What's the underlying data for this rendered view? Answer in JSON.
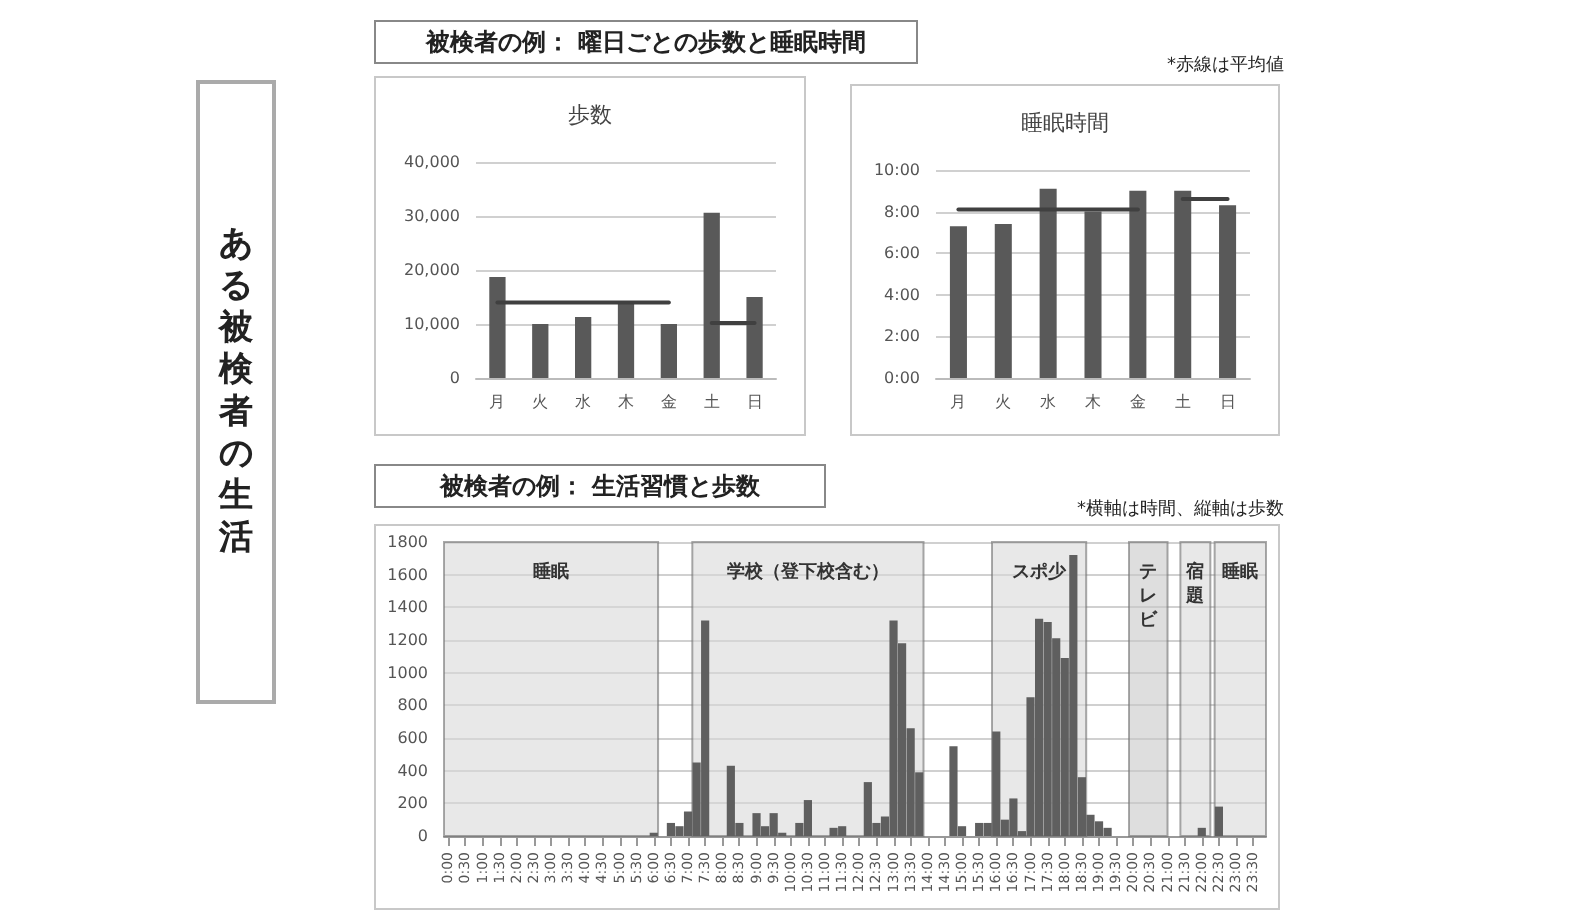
{
  "chart_data": [
    {
      "type": "bar",
      "title": "歩数",
      "categories": [
        "月",
        "火",
        "水",
        "木",
        "金",
        "土",
        "日"
      ],
      "series": [
        {
          "color": "#595959",
          "values": [
            18700,
            10000,
            11300,
            13800,
            10000,
            30600,
            15000
          ]
        },
        {
          "type": "line",
          "color": "#404040",
          "values": [
            14000,
            14000,
            14000,
            14000,
            14000,
            null,
            null
          ]
        },
        {
          "type": "line",
          "color": "#404040",
          "values": [
            null,
            null,
            null,
            null,
            null,
            10200,
            10200
          ]
        }
      ],
      "ylim": [
        0,
        40000
      ],
      "yticks": [
        0,
        {
          "value": 10000,
          "label": "10,000"
        },
        {
          "value": 20000,
          "label": "20,000"
        },
        {
          "value": 30000,
          "label": "30,000"
        },
        {
          "value": 40000,
          "label": "40,000"
        }
      ],
      "grid": "y",
      "annotations": [
        "ある被検者の生活",
        "被検者の例： 曜日ごとの歩数と睡眠時間"
      ]
    },
    {
      "type": "bar",
      "title": "睡眠時間",
      "categories": [
        "月",
        "火",
        "水",
        "木",
        "金",
        "土",
        "日"
      ],
      "series": [
        {
          "color": "#595959",
          "values": [
            7.3,
            7.4,
            9.1,
            8.0,
            9.0,
            9.0,
            8.3
          ]
        },
        {
          "type": "line",
          "color": "#404040",
          "values": [
            8.1,
            8.1,
            8.1,
            8.1,
            8.1,
            null,
            null
          ]
        },
        {
          "type": "line",
          "color": "#404040",
          "values": [
            null,
            null,
            null,
            null,
            null,
            8.6,
            8.6
          ]
        }
      ],
      "ylim": [
        0,
        10
      ],
      "yticks": [
        {
          "value": 0,
          "label": "0:00"
        },
        {
          "value": 2,
          "label": "2:00"
        },
        {
          "value": 4,
          "label": "4:00"
        },
        {
          "value": 6,
          "label": "6:00"
        },
        {
          "value": 8,
          "label": "8:00"
        },
        {
          "value": 10,
          "label": "10:00"
        }
      ],
      "grid": "y",
      "annotations": [
        "*赤線は平均値"
      ]
    },
    {
      "type": "bar",
      "title": "被検者の例： 生活習慣と歩数",
      "x": [
        0,
        0.25,
        0.5,
        0.75,
        1,
        1.25,
        1.5,
        1.75,
        2,
        2.25,
        2.5,
        2.75,
        3,
        3.25,
        3.5,
        3.75,
        4,
        4.25,
        4.5,
        4.75,
        5,
        5.25,
        5.5,
        5.75,
        6,
        6.25,
        6.5,
        6.75,
        7,
        7.25,
        7.5,
        7.75,
        8,
        8.25,
        8.5,
        8.75,
        9,
        9.25,
        9.5,
        9.75,
        10,
        10.25,
        10.5,
        10.75,
        11,
        11.25,
        11.5,
        11.75,
        12,
        12.25,
        12.5,
        12.75,
        13,
        13.25,
        13.5,
        13.75,
        14,
        14.25,
        14.5,
        14.75,
        15,
        15.25,
        15.5,
        15.75,
        16,
        16.25,
        16.5,
        16.75,
        17,
        17.25,
        17.5,
        17.75,
        18,
        18.25,
        18.5,
        18.75,
        19,
        19.25,
        19.5,
        19.75,
        20,
        20.25,
        20.5,
        20.75,
        21,
        21.25,
        21.5,
        21.75,
        22,
        22.25,
        22.5,
        22.75,
        23,
        23.25,
        23.5,
        23.75
      ],
      "series": [
        {
          "color": "#5f5f5f",
          "values": [
            0,
            0,
            0,
            0,
            0,
            0,
            0,
            0,
            0,
            0,
            0,
            0,
            0,
            0,
            0,
            0,
            0,
            0,
            0,
            0,
            0,
            0,
            0,
            0,
            20,
            0,
            80,
            60,
            150,
            450,
            1320,
            0,
            0,
            430,
            80,
            0,
            140,
            60,
            140,
            20,
            0,
            80,
            220,
            0,
            0,
            50,
            60,
            0,
            0,
            330,
            80,
            120,
            1320,
            1180,
            660,
            390,
            0,
            0,
            0,
            550,
            60,
            0,
            80,
            80,
            640,
            100,
            230,
            30,
            850,
            1330,
            1310,
            1210,
            1090,
            1720,
            360,
            130,
            90,
            50,
            0,
            0,
            0,
            0,
            0,
            0,
            0,
            0,
            null,
            0,
            50,
            0,
            180,
            0,
            0,
            0,
            0,
            0
          ]
        }
      ],
      "xlim": [
        -0.125,
        23.875
      ],
      "xticks": [
        {
          "value": 0,
          "label": "0:00"
        },
        {
          "value": 0.5,
          "label": "0:30"
        },
        {
          "value": 1,
          "label": "1:00"
        },
        {
          "value": 1.5,
          "label": "1:30"
        },
        {
          "value": 2,
          "label": "2:00"
        },
        {
          "value": 2.5,
          "label": "2:30"
        },
        {
          "value": 3,
          "label": "3:00"
        },
        {
          "value": 3.5,
          "label": "3:30"
        },
        {
          "value": 4,
          "label": "4:00"
        },
        {
          "value": 4.5,
          "label": "4:30"
        },
        {
          "value": 5,
          "label": "5:00"
        },
        {
          "value": 5.5,
          "label": "5:30"
        },
        {
          "value": 6,
          "label": "6:00"
        },
        {
          "value": 6.5,
          "label": "6:30"
        },
        {
          "value": 7,
          "label": "7:00"
        },
        {
          "value": 7.5,
          "label": "7:30"
        },
        {
          "value": 8,
          "label": "8:00"
        },
        {
          "value": 8.5,
          "label": "8:30"
        },
        {
          "value": 9,
          "label": "9:00"
        },
        {
          "value": 9.5,
          "label": "9:30"
        },
        {
          "value": 10,
          "label": "10:00"
        },
        {
          "value": 10.5,
          "label": "10:30"
        },
        {
          "value": 11,
          "label": "11:00"
        },
        {
          "value": 11.5,
          "label": "11:30"
        },
        {
          "value": 12,
          "label": "12:00"
        },
        {
          "value": 12.5,
          "label": "12:30"
        },
        {
          "value": 13,
          "label": "13:00"
        },
        {
          "value": 13.5,
          "label": "13:30"
        },
        {
          "value": 14,
          "label": "14:00"
        },
        {
          "value": 14.5,
          "label": "14:30"
        },
        {
          "value": 15,
          "label": "15:00"
        },
        {
          "value": 15.5,
          "label": "15:30"
        },
        {
          "value": 16,
          "label": "16:00"
        },
        {
          "value": 16.5,
          "label": "16:30"
        },
        {
          "value": 17,
          "label": "17:00"
        },
        {
          "value": 17.5,
          "label": "17:30"
        },
        {
          "value": 18,
          "label": "18:00"
        },
        {
          "value": 18.5,
          "label": "18:30"
        },
        {
          "value": 19,
          "label": "19:00"
        },
        {
          "value": 19.5,
          "label": "19:30"
        },
        {
          "value": 20,
          "label": "20:00"
        },
        {
          "value": 20.5,
          "label": "20:30"
        },
        {
          "value": 21,
          "label": "21:00"
        },
        {
          "value": 21.5,
          "label": "21:30"
        },
        {
          "value": 22,
          "label": "22:00"
        },
        {
          "value": 22.5,
          "label": "22:30"
        },
        {
          "value": 23,
          "label": "23:00"
        },
        {
          "value": 23.5,
          "label": "23:30"
        }
      ],
      "ylim": [
        0,
        1800
      ],
      "yticks": [
        0,
        200,
        400,
        600,
        800,
        1000,
        1200,
        1400,
        1600,
        1800
      ],
      "bands": [
        {
          "axis": "x",
          "from": -0.125,
          "to": 6.125,
          "label": "睡眠",
          "color": "#d9d9d9"
        },
        {
          "axis": "x",
          "from": 7.125,
          "to": 13.875,
          "label": "学校（登下校含む）",
          "color": "#d9d9d9"
        },
        {
          "axis": "x",
          "from": 15.875,
          "to": 18.625,
          "label": "スポ少",
          "color": "#d9d9d9"
        },
        {
          "axis": "x",
          "from": 19.875,
          "to": 21.0,
          "label": "テレビ",
          "color": "#c8c8c8"
        },
        {
          "axis": "x",
          "from": 21.375,
          "to": 22.25,
          "label": "宿題",
          "color": "#d9d9d9"
        },
        {
          "axis": "x",
          "from": 22.375,
          "to": 23.875,
          "label": "睡眠",
          "color": "#d9d9d9"
        }
      ],
      "grid": "y",
      "annotations": [
        "*横軸は時間、縦軸は歩数"
      ]
    }
  ]
}
